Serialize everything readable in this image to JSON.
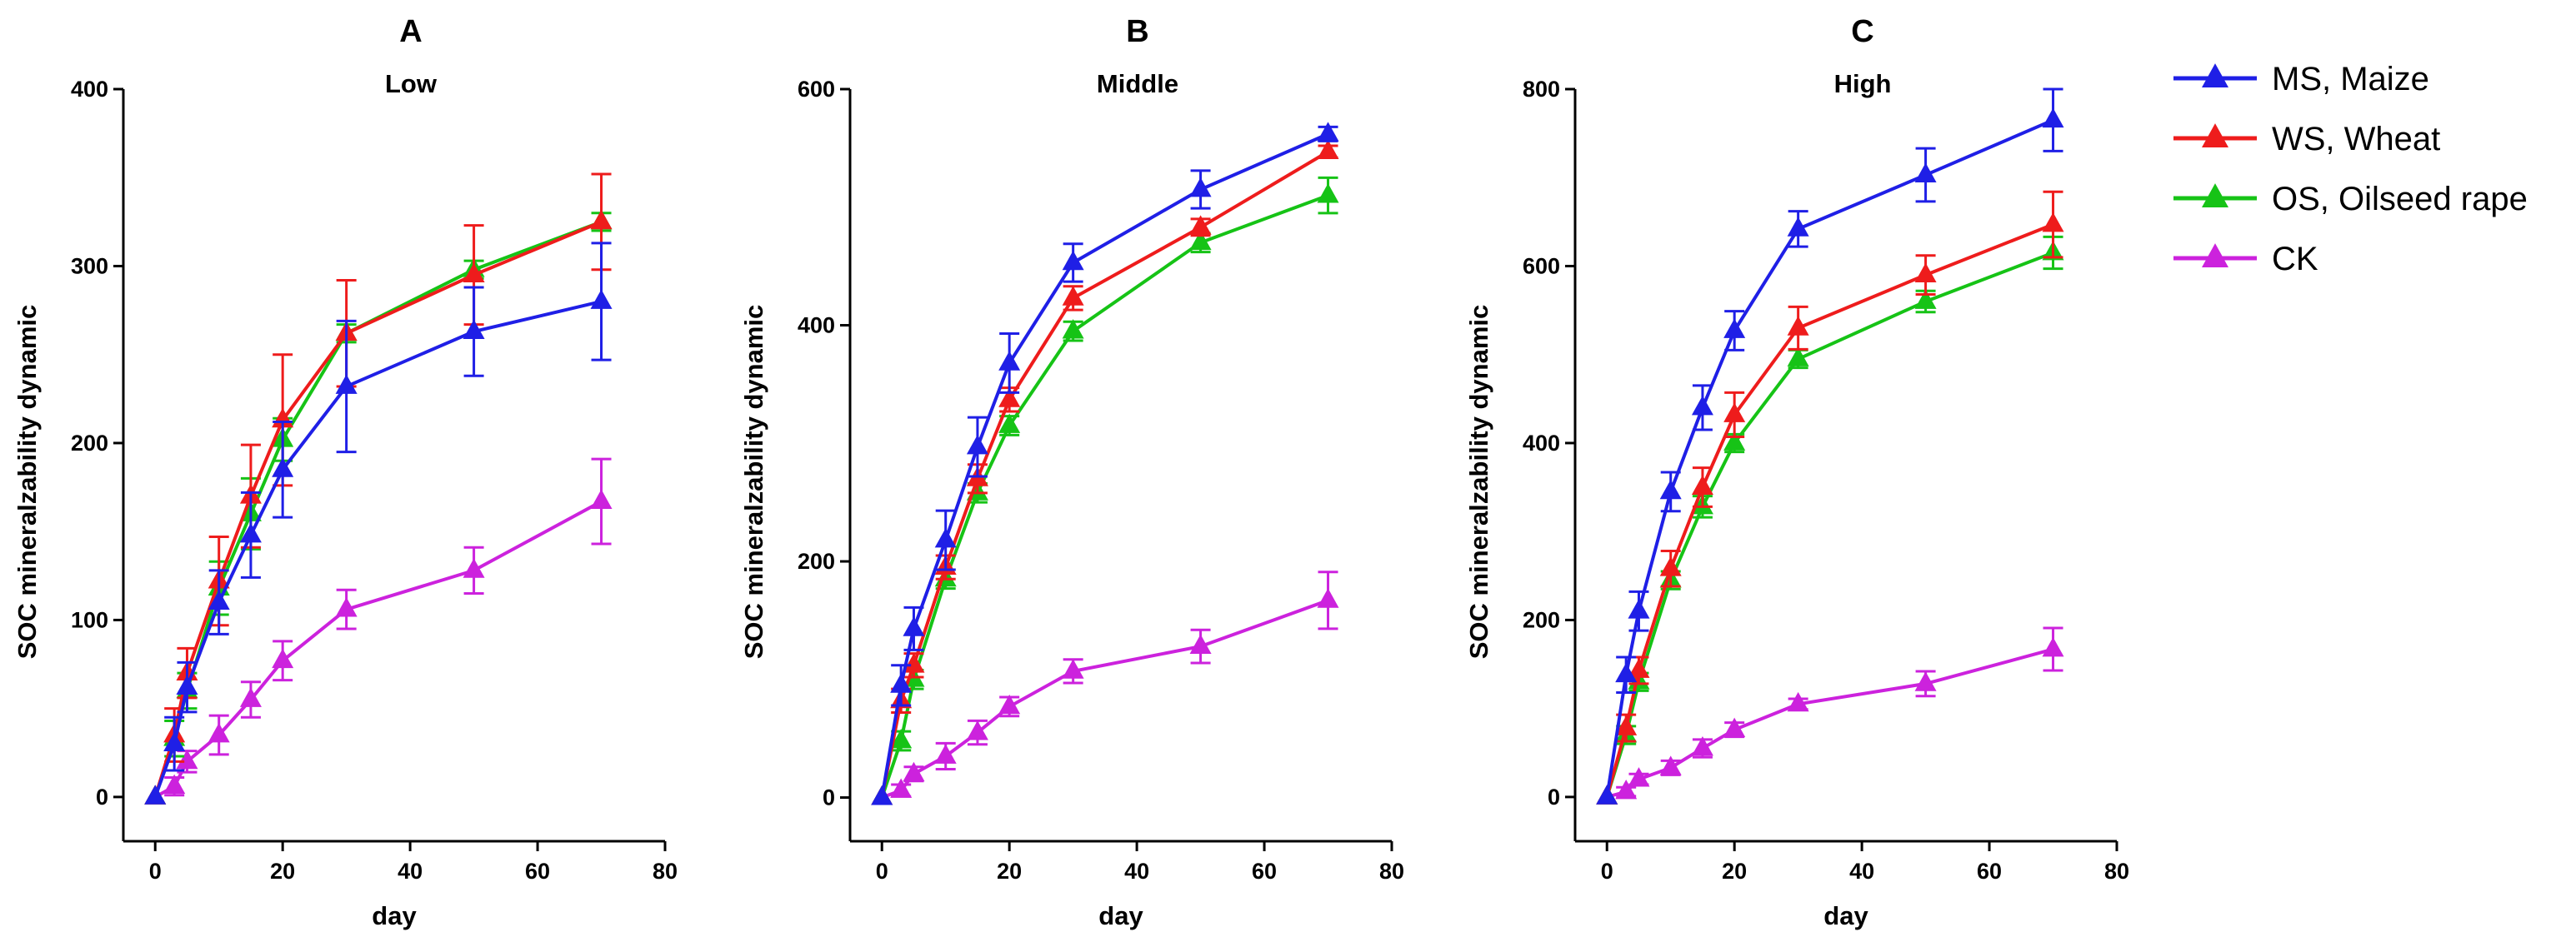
{
  "colors": {
    "MS, Maize": "#1f1fe6",
    "WS, Wheat": "#ee1c1c",
    "OS, Oilseed rape": "#16c316",
    "CK": "#cc22dd"
  },
  "legend": [
    "MS, Maize",
    "WS, Wheat",
    "OS, Oilseed rape",
    "CK"
  ],
  "chart_data": [
    {
      "type": "line",
      "panel": "A",
      "title": "Low",
      "xlabel": "day",
      "ylabel": "SOC mineralzability dynamic",
      "xlim": [
        -5,
        80
      ],
      "ylim": [
        -25,
        400
      ],
      "xticks": [
        0,
        20,
        40,
        60,
        80
      ],
      "yticks": [
        0,
        100,
        200,
        300,
        400
      ],
      "x": [
        0,
        3,
        5,
        10,
        15,
        20,
        30,
        50,
        70
      ],
      "series": [
        {
          "name": "MS, Maize",
          "values": [
            0,
            30,
            62,
            110,
            148,
            185,
            232,
            263,
            280
          ],
          "errors": [
            0,
            15,
            14,
            18,
            24,
            27,
            37,
            25,
            33
          ]
        },
        {
          "name": "WS, Wheat",
          "values": [
            0,
            35,
            70,
            122,
            170,
            213,
            262,
            295,
            325
          ],
          "errors": [
            0,
            15,
            14,
            25,
            29,
            37,
            30,
            28,
            27
          ]
        },
        {
          "name": "OS, Oilseed rape",
          "values": [
            0,
            33,
            60,
            118,
            160,
            202,
            262,
            298,
            325
          ],
          "errors": [
            0,
            10,
            10,
            15,
            20,
            12,
            5,
            5,
            5
          ]
        },
        {
          "name": "CK",
          "values": [
            0,
            6,
            20,
            35,
            55,
            77,
            106,
            128,
            167
          ],
          "errors": [
            0,
            5,
            6,
            11,
            10,
            11,
            11,
            13,
            24
          ]
        }
      ]
    },
    {
      "type": "line",
      "panel": "B",
      "title": "Middle",
      "xlabel": "day",
      "ylabel": "SOC mineralzability dynamic",
      "xlim": [
        -5,
        80
      ],
      "ylim": [
        -37,
        600
      ],
      "xticks": [
        0,
        20,
        40,
        60,
        80
      ],
      "yticks": [
        0,
        200,
        400,
        600
      ],
      "x": [
        0,
        3,
        5,
        10,
        15,
        20,
        30,
        50,
        70
      ],
      "series": [
        {
          "name": "MS, Maize",
          "values": [
            0,
            95,
            143,
            218,
            297,
            368,
            453,
            515,
            562
          ],
          "errors": [
            0,
            17,
            18,
            25,
            25,
            25,
            16,
            16,
            6
          ]
        },
        {
          "name": "WS, Wheat",
          "values": [
            0,
            82,
            112,
            195,
            270,
            337,
            423,
            483,
            547
          ],
          "errors": [
            0,
            10,
            10,
            10,
            12,
            10,
            10,
            7,
            5
          ]
        },
        {
          "name": "OS, Oilseed rape",
          "values": [
            0,
            48,
            100,
            185,
            258,
            315,
            395,
            470,
            510
          ],
          "errors": [
            0,
            8,
            8,
            8,
            8,
            8,
            8,
            8,
            15
          ]
        },
        {
          "name": "CK",
          "values": [
            0,
            6,
            20,
            35,
            55,
            77,
            107,
            128,
            167
          ],
          "errors": [
            0,
            5,
            6,
            11,
            10,
            8,
            10,
            14,
            24
          ]
        }
      ]
    },
    {
      "type": "line",
      "panel": "C",
      "title": "High",
      "xlabel": "day",
      "ylabel": "SOC mineralzability dynamic",
      "xlim": [
        -5,
        80
      ],
      "ylim": [
        -50,
        800
      ],
      "xticks": [
        0,
        20,
        40,
        60,
        80
      ],
      "yticks": [
        0,
        200,
        400,
        600,
        800
      ],
      "x": [
        0,
        3,
        5,
        10,
        15,
        20,
        30,
        50,
        70
      ],
      "series": [
        {
          "name": "MS, Maize",
          "values": [
            0,
            138,
            210,
            345,
            440,
            527,
            642,
            703,
            765
          ],
          "errors": [
            0,
            20,
            22,
            22,
            25,
            22,
            20,
            30,
            35
          ]
        },
        {
          "name": "WS, Wheat",
          "values": [
            0,
            78,
            143,
            258,
            350,
            432,
            530,
            590,
            647
          ],
          "errors": [
            0,
            15,
            15,
            20,
            22,
            25,
            24,
            22,
            37
          ]
        },
        {
          "name": "OS, Oilseed rape",
          "values": [
            0,
            70,
            130,
            245,
            328,
            400,
            495,
            560,
            615
          ],
          "errors": [
            0,
            10,
            10,
            10,
            12,
            10,
            10,
            12,
            18
          ]
        },
        {
          "name": "CK",
          "values": [
            0,
            6,
            20,
            33,
            55,
            76,
            105,
            128,
            167
          ],
          "errors": [
            0,
            5,
            6,
            8,
            10,
            8,
            6,
            14,
            24
          ]
        }
      ]
    }
  ]
}
